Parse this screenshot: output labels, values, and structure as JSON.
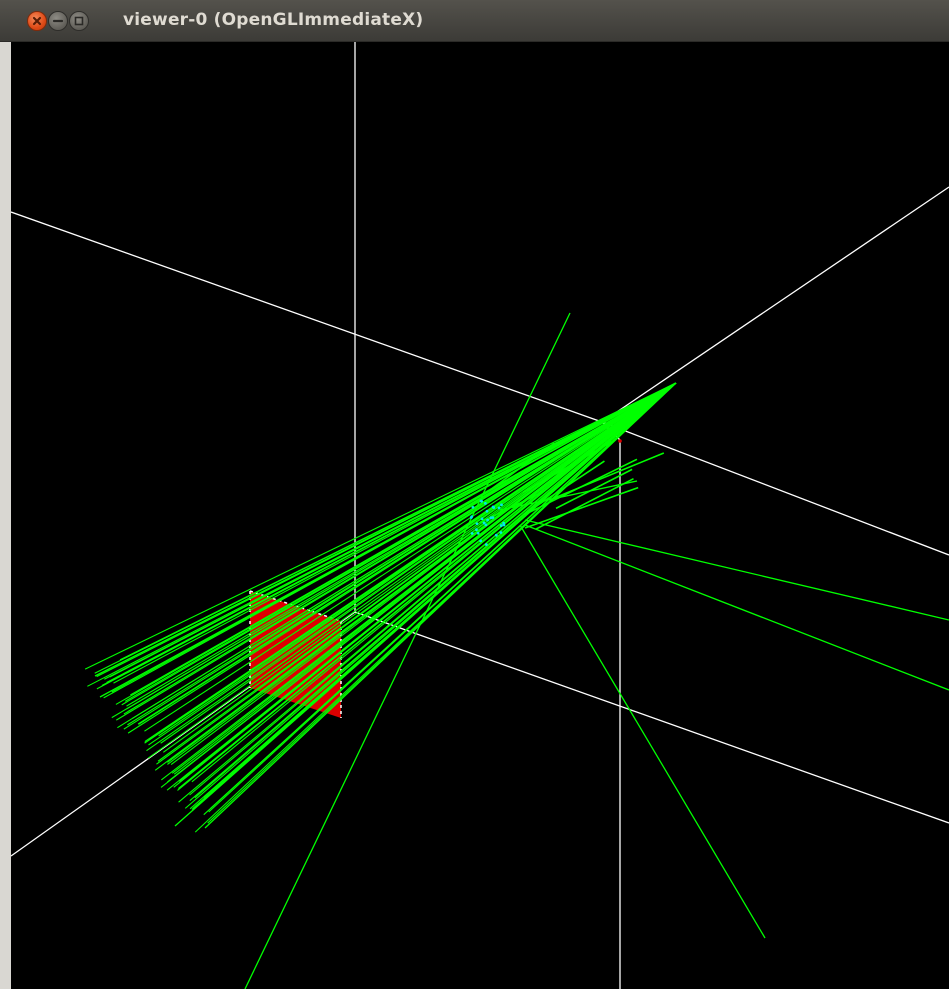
{
  "window": {
    "title": "viewer-0 (OpenGLImmediateX)",
    "buttons": {
      "close": "close-icon",
      "minimize": "minimize-icon",
      "maximize": "maximize-icon"
    }
  },
  "scene": {
    "background": "#000000",
    "colors": {
      "axes": "#ffffff",
      "trajectories": "#00ff00",
      "detector": "#dd0000",
      "target": "#00e8e8"
    }
  }
}
